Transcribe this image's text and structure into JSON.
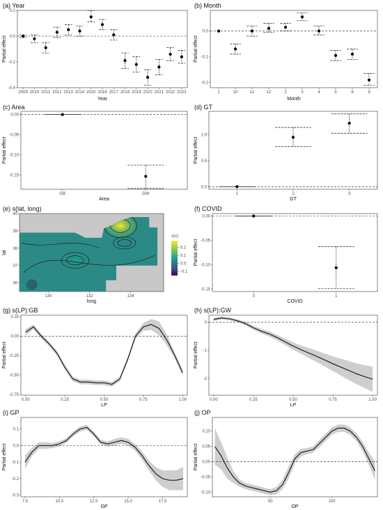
{
  "chart_data": [
    {
      "id": "a",
      "title": "(a) Year",
      "type": "scatter",
      "xlabel": "Year",
      "ylabel": "Partial effect",
      "categories": [
        "2009",
        "2010",
        "2011",
        "2012",
        "2013",
        "2014",
        "2015",
        "2016",
        "2017",
        "2018",
        "2019",
        "2020",
        "2021",
        "2022",
        "2023"
      ],
      "values": [
        0.0,
        -0.02,
        -0.09,
        0.03,
        0.05,
        0.04,
        0.15,
        0.09,
        0.01,
        -0.19,
        -0.22,
        -0.32,
        -0.24,
        -0.14,
        -0.16
      ],
      "ci_low": [
        -0.01,
        -0.05,
        -0.13,
        -0.01,
        0.01,
        0.0,
        0.11,
        0.05,
        -0.03,
        -0.25,
        -0.28,
        -0.38,
        -0.3,
        -0.19,
        -0.21
      ],
      "ci_high": [
        0.01,
        0.01,
        -0.05,
        0.07,
        0.09,
        0.08,
        0.2,
        0.13,
        0.05,
        -0.13,
        -0.16,
        -0.26,
        -0.18,
        -0.09,
        -0.11
      ],
      "ylim": [
        -0.4,
        0.2
      ],
      "yticks": [
        -0.4,
        -0.2,
        0.0,
        0.2
      ],
      "ytick_labels": [
        "-0.4",
        "-0.2",
        "0.0",
        "0.2"
      ]
    },
    {
      "id": "b",
      "title": "(b) Month",
      "type": "scatter",
      "xlabel": "Month",
      "ylabel": "Partial effect",
      "categories": [
        "1",
        "10",
        "11",
        "12",
        "2",
        "3",
        "4",
        "5",
        "6",
        "9"
      ],
      "values": [
        0.0,
        -0.07,
        0.0,
        0.01,
        0.015,
        0.055,
        0.0,
        -0.095,
        -0.09,
        -0.19
      ],
      "ci_low": [
        0.0,
        -0.09,
        -0.02,
        -0.005,
        0.0,
        0.04,
        -0.015,
        -0.115,
        -0.11,
        -0.21
      ],
      "ci_high": [
        0.0,
        -0.05,
        0.02,
        0.03,
        0.03,
        0.07,
        0.02,
        -0.075,
        -0.07,
        -0.165
      ],
      "ylim": [
        -0.22,
        0.08
      ],
      "yticks": [
        -0.2,
        -0.1,
        0.0
      ],
      "ytick_labels": [
        "-0.2",
        "-0.1",
        "0.0"
      ]
    },
    {
      "id": "c",
      "title": "(c) Area",
      "type": "scatter",
      "xlabel": "Area",
      "ylabel": "Partial effect",
      "categories": [
        "GB",
        "GW"
      ],
      "values": [
        0.0,
        -0.153
      ],
      "ci_low": [
        0.0,
        -0.183
      ],
      "ci_high": [
        0.0,
        -0.125
      ],
      "ylim": [
        -0.185,
        0.008
      ],
      "yticks": [
        -0.15,
        -0.1,
        -0.05,
        0.0
      ],
      "ytick_labels": [
        "-0.15",
        "-0.10",
        "-0.05",
        "0.00"
      ]
    },
    {
      "id": "d",
      "title": "(d) GT",
      "type": "scatter",
      "xlabel": "GT",
      "ylabel": "Partial effect",
      "categories": [
        "1",
        "2",
        "3"
      ],
      "values": [
        0.0,
        0.95,
        1.22
      ],
      "ci_low": [
        0.0,
        0.77,
        1.03
      ],
      "ci_high": [
        0.0,
        1.14,
        1.4
      ],
      "ylim": [
        -0.05,
        1.45
      ],
      "yticks": [
        0.0,
        0.5,
        1.0
      ],
      "ytick_labels": [
        "0.0",
        "0.5",
        "1.0"
      ]
    },
    {
      "id": "e",
      "title": "(e) s(lat, long)",
      "type": "heatmap",
      "xlabel": "long",
      "ylabel": "lat",
      "xlim": [
        128.6,
        135.6
      ],
      "ylim": [
        35.5,
        40.0
      ],
      "xticks": [
        130,
        132,
        134
      ],
      "yticks": [
        36,
        37,
        38,
        39,
        40
      ],
      "legend_title": "s(x)",
      "colorbar_range": [
        -0.15,
        0.28
      ],
      "colorbar_ticks": [
        0.2,
        0.1,
        0.0,
        -0.1
      ],
      "colorbar_tick_labels": [
        "0.2",
        "0.1",
        "0.0",
        "-0.1"
      ],
      "hotspots": [
        {
          "long": 133.5,
          "lat": 39.3,
          "value": 0.25
        },
        {
          "long": 131.3,
          "lat": 37.3,
          "value": -0.05
        },
        {
          "long": 133.7,
          "lat": 38.3,
          "value": -0.05
        },
        {
          "long": 129.2,
          "lat": 35.9,
          "value": -0.15
        }
      ]
    },
    {
      "id": "f",
      "title": "(f) COVID",
      "type": "scatter",
      "xlabel": "COVID",
      "ylabel": "Partial effect",
      "categories": [
        "0",
        "1"
      ],
      "values": [
        0.0,
        -0.106
      ],
      "ci_low": [
        0.0,
        -0.149
      ],
      "ci_high": [
        0.0,
        -0.063
      ],
      "ylim": [
        -0.155,
        0.005
      ],
      "yticks": [
        -0.15,
        -0.1,
        -0.05,
        0.0
      ],
      "ytick_labels": [
        "-0.15",
        "-0.10",
        "-0.05",
        "0.00"
      ]
    },
    {
      "id": "g",
      "title": "(g) s(LP):GB",
      "type": "line",
      "xlabel": "LP",
      "ylabel": "Partial effect",
      "x": [
        0.0,
        0.05,
        0.1,
        0.15,
        0.2,
        0.25,
        0.3,
        0.35,
        0.4,
        0.45,
        0.5,
        0.55,
        0.6,
        0.65,
        0.7,
        0.75,
        0.8,
        0.85,
        0.9,
        0.95,
        1.0
      ],
      "y": [
        0.05,
        0.12,
        0.0,
        -0.1,
        -0.22,
        -0.4,
        -0.55,
        -0.59,
        -0.59,
        -0.6,
        -0.6,
        -0.62,
        -0.55,
        -0.3,
        0.0,
        0.12,
        0.15,
        0.1,
        -0.05,
        -0.25,
        -0.47
      ],
      "band_half_width": [
        0.04,
        0.03,
        0.03,
        0.03,
        0.03,
        0.03,
        0.03,
        0.03,
        0.03,
        0.03,
        0.03,
        0.03,
        0.03,
        0.03,
        0.03,
        0.05,
        0.07,
        0.09,
        0.07,
        0.04,
        0.04
      ],
      "xlim": [
        -0.03,
        1.03
      ],
      "ylim": [
        -0.76,
        0.27
      ],
      "xticks": [
        0.0,
        0.25,
        0.5,
        0.75,
        1.0
      ],
      "xtick_labels": [
        "0.00",
        "0.25",
        "0.50",
        "0.75",
        "1.00"
      ],
      "yticks": [
        -0.75,
        -0.5,
        -0.25,
        0.0,
        0.25
      ],
      "ytick_labels": [
        "-0.75",
        "-0.50",
        "-0.25",
        "0.00",
        "0.25"
      ]
    },
    {
      "id": "h",
      "title": "(h) s(LP):GW",
      "type": "line",
      "xlabel": "LP",
      "ylabel": "Partial effect",
      "x": [
        0.0,
        0.05,
        0.1,
        0.15,
        0.2,
        0.25,
        0.3,
        0.35,
        0.4,
        0.45,
        0.5,
        0.55,
        0.6,
        0.65,
        0.7,
        0.75,
        0.8,
        0.85,
        0.9,
        0.95,
        1.0
      ],
      "y": [
        0.1,
        0.15,
        0.12,
        0.05,
        -0.05,
        -0.2,
        -0.32,
        -0.42,
        -0.55,
        -0.7,
        -0.85,
        -0.98,
        -1.1,
        -1.22,
        -1.35,
        -1.48,
        -1.6,
        -1.72,
        -1.84,
        -1.94,
        -2.03
      ],
      "band_half_width": [
        0.06,
        0.05,
        0.05,
        0.05,
        0.06,
        0.07,
        0.08,
        0.09,
        0.1,
        0.11,
        0.13,
        0.15,
        0.18,
        0.2,
        0.23,
        0.26,
        0.3,
        0.34,
        0.37,
        0.41,
        0.45
      ],
      "xlim": [
        -0.03,
        1.03
      ],
      "ylim": [
        -2.6,
        0.25
      ],
      "xticks": [
        0.0,
        0.25,
        0.5,
        0.75,
        1.0
      ],
      "xtick_labels": [
        "0.00",
        "0.25",
        "0.50",
        "0.75",
        "1.00"
      ],
      "yticks": [
        -2,
        -1,
        0
      ],
      "ytick_labels": [
        "-2",
        "-1",
        "0"
      ]
    },
    {
      "id": "i",
      "title": "(i) GP",
      "type": "line",
      "xlabel": "GP",
      "ylabel": "Partial effect",
      "x": [
        7.5,
        8.0,
        8.5,
        9.0,
        9.5,
        10.0,
        10.5,
        11.0,
        11.5,
        12.0,
        12.5,
        13.0,
        13.5,
        14.0,
        14.5,
        15.0,
        15.5,
        16.0,
        16.5,
        17.0,
        17.5,
        18.0,
        18.5,
        19.0
      ],
      "y": [
        -0.1,
        -0.04,
        0.0,
        0.0,
        0.0,
        0.01,
        0.03,
        0.07,
        0.1,
        0.11,
        0.07,
        0.02,
        0.01,
        0.02,
        0.03,
        0.02,
        -0.01,
        -0.06,
        -0.12,
        -0.17,
        -0.2,
        -0.21,
        -0.21,
        -0.2
      ],
      "band_half_width": [
        0.04,
        0.025,
        0.02,
        0.02,
        0.015,
        0.015,
        0.015,
        0.015,
        0.015,
        0.015,
        0.015,
        0.015,
        0.015,
        0.02,
        0.02,
        0.02,
        0.02,
        0.025,
        0.03,
        0.04,
        0.05,
        0.06,
        0.06,
        0.07
      ],
      "xlim": [
        7.2,
        19.3
      ],
      "ylim": [
        -0.31,
        0.17
      ],
      "xticks": [
        7.5,
        10.0,
        12.5,
        15.0,
        17.5
      ],
      "xtick_labels": [
        "7.5",
        "10.0",
        "12.5",
        "15.0",
        "17.5"
      ],
      "yticks": [
        -0.3,
        -0.2,
        -0.1,
        0.0,
        0.1
      ],
      "ytick_labels": [
        "-0.3",
        "-0.2",
        "-0.1",
        "0.0",
        "0.1"
      ]
    },
    {
      "id": "j",
      "title": "(j) OP",
      "type": "line",
      "xlabel": "OP",
      "ylabel": "Partial effect",
      "x": [
        5,
        10,
        15,
        20,
        25,
        30,
        35,
        40,
        45,
        50,
        55,
        60,
        65,
        70,
        75,
        80,
        85,
        90,
        95,
        100,
        105,
        110,
        115,
        120,
        125,
        130,
        135
      ],
      "y": [
        0.05,
        0.02,
        -0.02,
        -0.05,
        -0.07,
        -0.08,
        -0.085,
        -0.09,
        -0.095,
        -0.1,
        -0.095,
        -0.075,
        -0.035,
        0.01,
        0.03,
        0.035,
        0.04,
        0.06,
        0.08,
        0.1,
        0.11,
        0.11,
        0.1,
        0.08,
        0.05,
        0.01,
        -0.03
      ],
      "band_half_width": [
        0.06,
        0.045,
        0.035,
        0.02,
        0.012,
        0.01,
        0.01,
        0.01,
        0.01,
        0.01,
        0.012,
        0.015,
        0.02,
        0.015,
        0.012,
        0.01,
        0.01,
        0.012,
        0.012,
        0.012,
        0.012,
        0.012,
        0.012,
        0.013,
        0.015,
        0.02,
        0.03
      ],
      "xlim": [
        3,
        137
      ],
      "ylim": [
        -0.115,
        0.145
      ],
      "xticks": [
        50,
        100
      ],
      "xtick_labels": [
        "50",
        "100"
      ],
      "yticks": [
        -0.1,
        -0.05,
        0.0,
        0.05,
        0.1
      ],
      "ytick_labels": [
        "-0.10",
        "-0.05",
        "0.00",
        "0.05",
        "0.10"
      ]
    }
  ]
}
